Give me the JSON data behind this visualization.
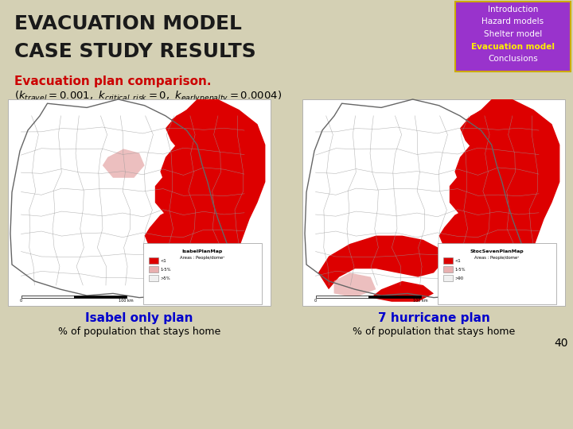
{
  "background_color": "#d4d0b4",
  "title_line1": "EVACUATION MODEL",
  "title_line2": "CASE STUDY RESULTS",
  "title_color": "#1a1a1a",
  "title_fontsize": 18,
  "nav_box_bg": "#9933cc",
  "nav_box_border": "#ccaa00",
  "nav_items": [
    "Introduction",
    "Hazard models",
    "Shelter model",
    "Evacuation model",
    "Conclusions"
  ],
  "nav_highlight": "Evacuation model",
  "nav_highlight_color": "#ffee00",
  "nav_normal_color": "#ffffff",
  "nav_fontsize": 7.5,
  "subtitle_text": "Evacuation plan comparison.",
  "subtitle_color": "#cc0000",
  "subtitle_fontsize": 11,
  "param_color": "#000000",
  "param_fontsize": 9.5,
  "left_caption": "Isabel only plan",
  "right_caption": "7 hurricane plan",
  "caption_color": "#0000cc",
  "caption_fontsize": 11,
  "sub_caption": "% of population that stays home",
  "sub_caption_color": "#000000",
  "sub_caption_fontsize": 9,
  "page_num": "40",
  "page_num_color": "#000000",
  "map_bg": "#ffffff",
  "map_border_color": "#aaaaaa",
  "county_line_color": "#999999",
  "red_fill": "#dd0000",
  "pink_fill": "#e8b0b0"
}
